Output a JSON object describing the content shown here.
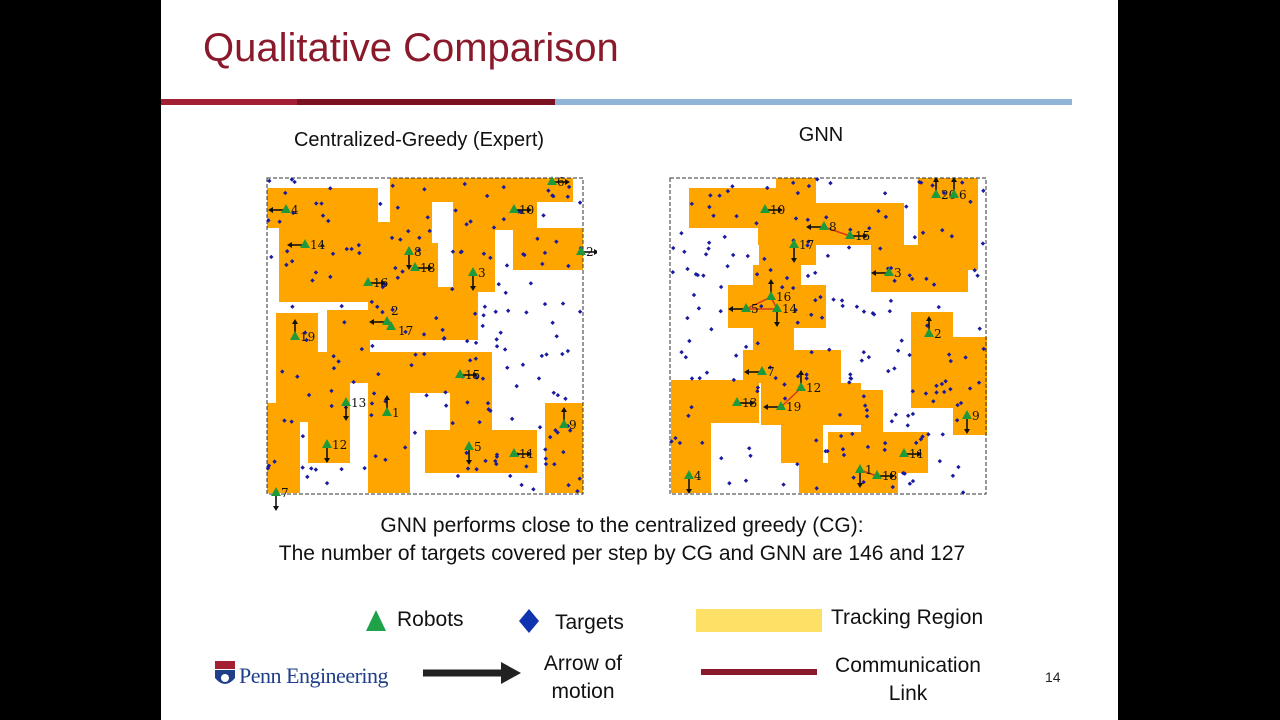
{
  "title": "Qualitative Comparison",
  "plots": [
    {
      "title": "Centralized-Greedy (Expert)",
      "robot_labels": [
        "4",
        "14",
        "8",
        "18",
        "16",
        "3",
        "10",
        "6",
        "2",
        "2",
        "17",
        "19",
        "15",
        "13",
        "1",
        "9",
        "12",
        "5",
        "11",
        "7"
      ]
    },
    {
      "title": "GNN",
      "robot_labels": [
        "10",
        "8",
        "15",
        "17",
        "3",
        "20",
        "6",
        "16",
        "5",
        "14",
        "2",
        "7",
        "12",
        "13",
        "19",
        "9",
        "11",
        "1",
        "18",
        "4"
      ]
    }
  ],
  "body": {
    "line1": "GNN performs close to the centralized greedy (CG):",
    "line2": "The number of targets covered per step by CG and GNN are 146 and 127"
  },
  "legend": {
    "robots": "Robots",
    "targets": "Targets",
    "tracking_region": "Tracking Region",
    "arrow_line1": "Arrow of",
    "arrow_line2": "motion",
    "comm_line1": "Communication",
    "comm_line2": "Link"
  },
  "logo_text": "Penn Engineering",
  "page_number": "14",
  "colors": {
    "title": "#8a1a2b",
    "region": "#ffa500",
    "legend_region": "#ffe066",
    "robot": "#1f9a3a",
    "target": "#1a1aa0",
    "comm_link": "#8a1a2b",
    "accent_blue": "#8fb4d6"
  }
}
